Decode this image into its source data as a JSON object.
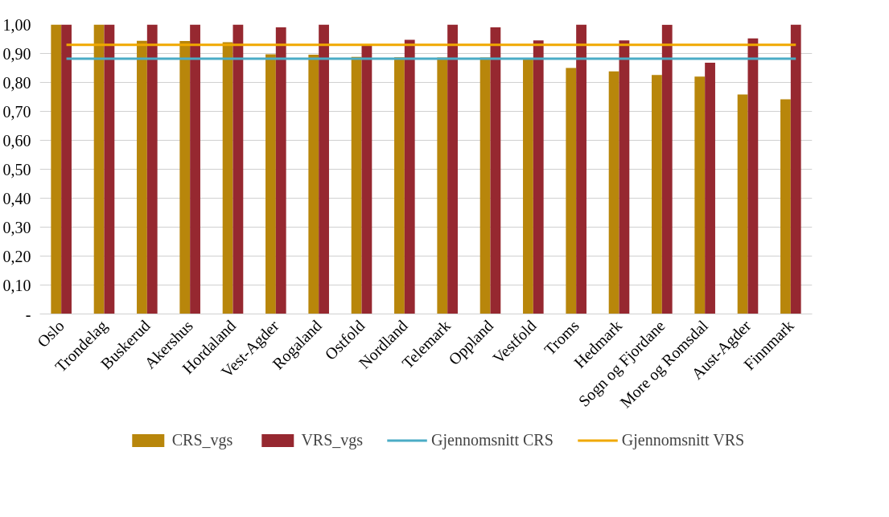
{
  "chart_data": {
    "type": "bar",
    "categories": [
      "Oslo",
      "Trondelag",
      "Buskerud",
      "Akershus",
      "Hordaland",
      "Vest-Agder",
      "Rogaland",
      "Ostfold",
      "Nordland",
      "Telemark",
      "Oppland",
      "Vestfold",
      "Troms",
      "Hedmark",
      "Sogn og Fjordane",
      "More og Romsdal",
      "Aust-Agder",
      "Finnmark"
    ],
    "series": [
      {
        "name": "CRS_vgs",
        "color": "#b8860b",
        "values": [
          1.0,
          1.0,
          0.944,
          0.943,
          0.939,
          0.897,
          0.896,
          0.888,
          0.887,
          0.886,
          0.886,
          0.885,
          0.85,
          0.838,
          0.826,
          0.82,
          0.758,
          0.742
        ]
      },
      {
        "name": "VRS_vgs",
        "color": "#962830",
        "values": [
          1.0,
          1.0,
          1.0,
          1.0,
          1.0,
          0.99,
          1.0,
          0.93,
          0.947,
          1.0,
          0.99,
          0.945,
          1.0,
          0.945,
          0.999,
          0.868,
          0.952,
          1.0
        ]
      },
      {
        "name": "Gjennomsnitt CRS",
        "type": "line",
        "color": "#4bacc6",
        "values": [
          0.882,
          0.882,
          0.882,
          0.882,
          0.882,
          0.882,
          0.882,
          0.882,
          0.882,
          0.882,
          0.882,
          0.882,
          0.882,
          0.882,
          0.882,
          0.882,
          0.882,
          0.882
        ]
      },
      {
        "name": "Gjennomsnitt VRS",
        "type": "line",
        "color": "#f0a800",
        "values": [
          0.93,
          0.93,
          0.93,
          0.93,
          0.93,
          0.93,
          0.93,
          0.93,
          0.93,
          0.93,
          0.93,
          0.93,
          0.93,
          0.93,
          0.93,
          0.93,
          0.93,
          0.93
        ]
      }
    ],
    "ylim": [
      0,
      1.0
    ],
    "yticks": [
      {
        "value": 0,
        "label": "-"
      },
      {
        "value": 0.1,
        "label": "0,10"
      },
      {
        "value": 0.2,
        "label": "0,20"
      },
      {
        "value": 0.3,
        "label": "0,30"
      },
      {
        "value": 0.4,
        "label": "0,40"
      },
      {
        "value": 0.5,
        "label": "0,50"
      },
      {
        "value": 0.6,
        "label": "0,60"
      },
      {
        "value": 0.7,
        "label": "0,70"
      },
      {
        "value": 0.8,
        "label": "0,80"
      },
      {
        "value": 0.9,
        "label": "0,90"
      },
      {
        "value": 1.0,
        "label": "1,00"
      }
    ],
    "grid": "y",
    "legend": "bottom"
  }
}
